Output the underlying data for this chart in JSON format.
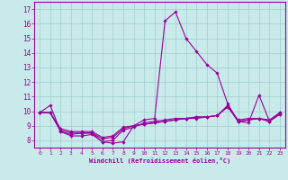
{
  "xlabel": "Windchill (Refroidissement éolien,°C)",
  "xlim": [
    -0.5,
    23.5
  ],
  "ylim": [
    7.5,
    17.5
  ],
  "yticks": [
    8,
    9,
    10,
    11,
    12,
    13,
    14,
    15,
    16,
    17
  ],
  "xticks": [
    0,
    1,
    2,
    3,
    4,
    5,
    6,
    7,
    8,
    9,
    10,
    11,
    12,
    13,
    14,
    15,
    16,
    17,
    18,
    19,
    20,
    21,
    22,
    23
  ],
  "bg_color": "#c8eaea",
  "line_color": "#990099",
  "grid_color": "#a0cccc",
  "lines": [
    {
      "x": [
        0,
        1,
        2,
        3,
        4,
        5,
        6,
        7,
        8,
        9,
        10,
        11,
        12,
        13,
        14,
        15,
        16,
        17,
        18,
        19,
        20,
        21,
        22,
        23
      ],
      "y": [
        9.9,
        10.4,
        8.6,
        8.4,
        8.5,
        8.5,
        7.9,
        7.8,
        7.9,
        9.0,
        9.4,
        9.5,
        16.2,
        16.8,
        15.0,
        14.1,
        13.2,
        12.6,
        10.5,
        9.3,
        9.2,
        11.1,
        9.3,
        9.9
      ]
    },
    {
      "x": [
        0,
        1,
        2,
        3,
        4,
        5,
        6,
        7,
        8,
        9,
        10,
        11,
        12,
        13,
        14,
        15,
        16,
        17,
        18,
        19,
        20,
        21,
        22,
        23
      ],
      "y": [
        9.9,
        9.9,
        8.6,
        8.3,
        8.3,
        8.4,
        7.9,
        8.0,
        8.7,
        8.9,
        9.2,
        9.3,
        9.4,
        9.5,
        9.5,
        9.6,
        9.6,
        9.7,
        10.4,
        9.3,
        9.4,
        9.5,
        9.3,
        9.8
      ]
    },
    {
      "x": [
        0,
        1,
        2,
        3,
        4,
        5,
        6,
        7,
        8,
        9,
        10,
        11,
        12,
        13,
        14,
        15,
        16,
        17,
        18,
        19,
        20,
        21,
        22,
        23
      ],
      "y": [
        9.9,
        9.9,
        8.7,
        8.5,
        8.5,
        8.5,
        8.1,
        8.2,
        8.8,
        9.0,
        9.1,
        9.2,
        9.3,
        9.4,
        9.5,
        9.5,
        9.6,
        9.7,
        10.3,
        9.3,
        9.4,
        9.5,
        9.3,
        9.8
      ]
    },
    {
      "x": [
        0,
        1,
        2,
        3,
        4,
        5,
        6,
        7,
        8,
        9,
        10,
        11,
        12,
        13,
        14,
        15,
        16,
        17,
        18,
        19,
        20,
        21,
        22,
        23
      ],
      "y": [
        9.9,
        9.9,
        8.8,
        8.6,
        8.6,
        8.6,
        8.2,
        8.3,
        8.9,
        9.0,
        9.1,
        9.2,
        9.3,
        9.4,
        9.5,
        9.6,
        9.6,
        9.7,
        10.3,
        9.4,
        9.5,
        9.5,
        9.4,
        9.9
      ]
    }
  ]
}
